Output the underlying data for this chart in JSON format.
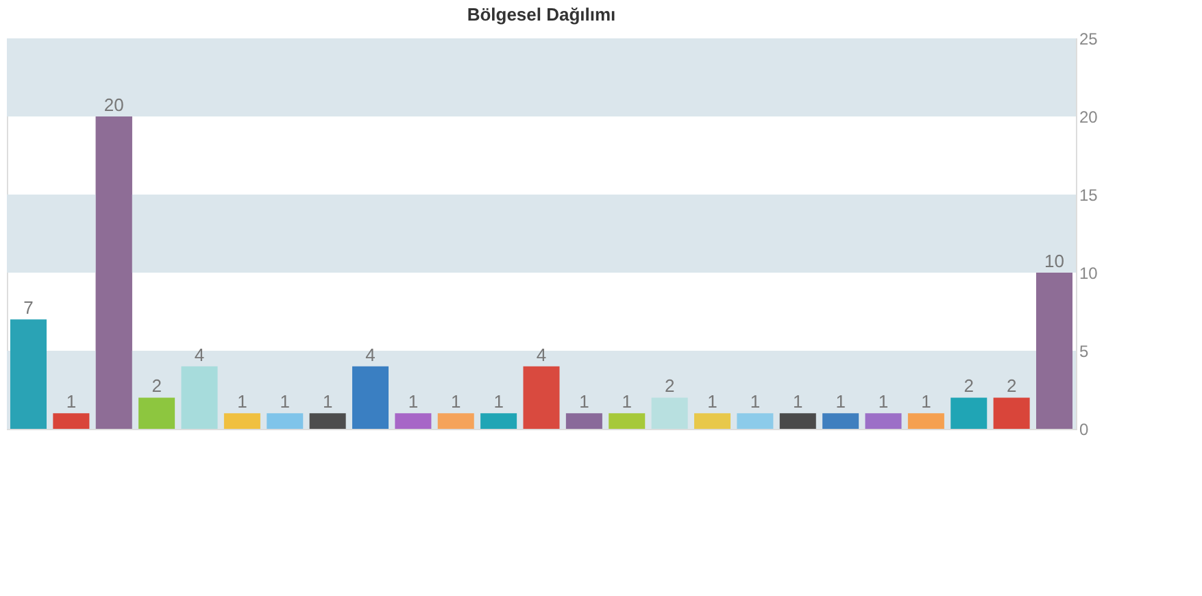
{
  "chart_data": {
    "type": "bar",
    "title": "Bölgesel Dağılımı",
    "categories": [
      null,
      null,
      null,
      null,
      null,
      null,
      null,
      null,
      null,
      null,
      null,
      null,
      null,
      null,
      null,
      null,
      null,
      null,
      null,
      null,
      null,
      null,
      null,
      null,
      null
    ],
    "values": [
      7,
      1,
      20,
      2,
      4,
      1,
      1,
      1,
      4,
      1,
      1,
      1,
      4,
      1,
      1,
      2,
      1,
      1,
      1,
      1,
      1,
      1,
      2,
      2,
      10
    ],
    "colors": [
      "#2aa3b5",
      "#d9453a",
      "#8e6d96",
      "#8dc63f",
      "#a7dcdc",
      "#f0c040",
      "#7fc4ea",
      "#4d4d4d",
      "#3a7fc2",
      "#a766c7",
      "#f5a35a",
      "#20a5b5",
      "#d94a3f",
      "#8a6a9a",
      "#a6c93a",
      "#b8e0e0",
      "#e8c84a",
      "#8ccbea",
      "#4a4a4a",
      "#3f7fbf",
      "#9c6fc7",
      "#f5a050",
      "#20a5b5",
      "#d9453a",
      "#8e6d96"
    ],
    "ylim": [
      0,
      25
    ],
    "yticks": [
      0,
      5,
      10,
      15,
      20,
      25
    ],
    "bands": [
      {
        "axis": "y",
        "from": 0,
        "to": 5,
        "color": "#dbe6ec"
      },
      {
        "axis": "y",
        "from": 10,
        "to": 15,
        "color": "#dbe6ec"
      },
      {
        "axis": "y",
        "from": 20,
        "to": 25,
        "color": "#dbe6ec"
      }
    ],
    "data_labels": true
  }
}
